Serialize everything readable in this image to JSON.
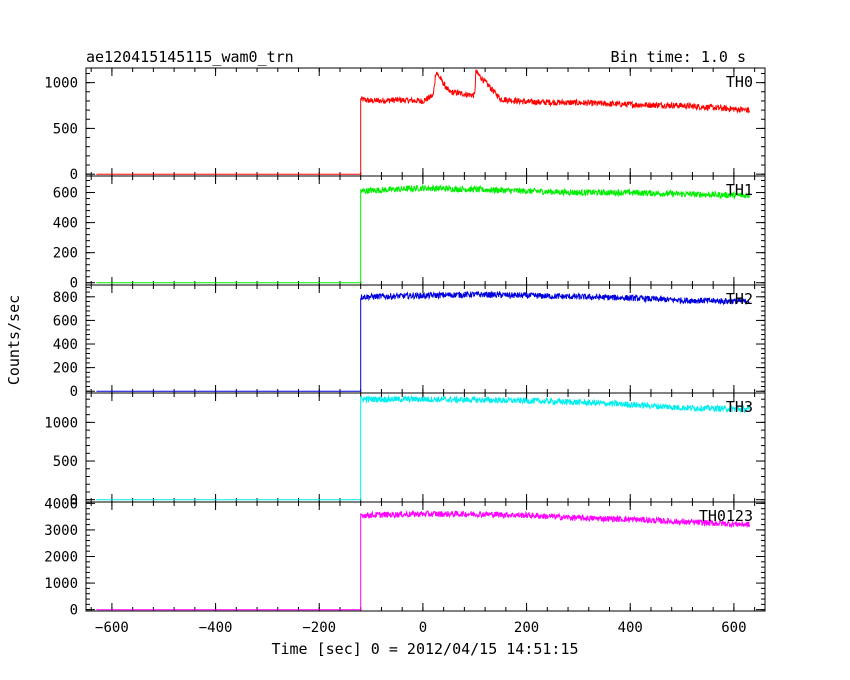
{
  "chart_data": {
    "type": "line",
    "title": "ae120415145115_wam0_trn",
    "subtitle": "Bin time: 1.0 s",
    "xlabel": "Time [sec] 0 = 2012/04/15 14:51:15",
    "ylabel": "Counts/sec",
    "xlim": [
      -650,
      660
    ],
    "xticks": [
      -600,
      -400,
      -200,
      0,
      200,
      400,
      600
    ],
    "onset_time": -120,
    "panels": [
      {
        "name": "TH0",
        "color": "#ff0000",
        "ylim": [
          -20,
          1160
        ],
        "yticks": [
          0,
          500,
          1000
        ],
        "baseline": 0,
        "points": [
          [
            -120,
            820
          ],
          [
            -100,
            800
          ],
          [
            -50,
            810
          ],
          [
            0,
            800
          ],
          [
            20,
            860
          ],
          [
            25,
            1120
          ],
          [
            50,
            900
          ],
          [
            100,
            860
          ],
          [
            102,
            1120
          ],
          [
            150,
            820
          ],
          [
            200,
            790
          ],
          [
            300,
            780
          ],
          [
            400,
            760
          ],
          [
            500,
            750
          ],
          [
            630,
            700
          ]
        ]
      },
      {
        "name": "TH1",
        "color": "#00ee00",
        "ylim": [
          -15,
          710
        ],
        "yticks": [
          0,
          200,
          400,
          600
        ],
        "baseline": 0,
        "points": [
          [
            -120,
            610
          ],
          [
            0,
            630
          ],
          [
            100,
            620
          ],
          [
            200,
            610
          ],
          [
            300,
            600
          ],
          [
            400,
            600
          ],
          [
            500,
            590
          ],
          [
            630,
            580
          ]
        ]
      },
      {
        "name": "TH2",
        "color": "#0000dd",
        "ylim": [
          -15,
          900
        ],
        "yticks": [
          0,
          200,
          400,
          600,
          800
        ],
        "baseline": 0,
        "points": [
          [
            -120,
            800
          ],
          [
            0,
            810
          ],
          [
            100,
            820
          ],
          [
            200,
            810
          ],
          [
            300,
            800
          ],
          [
            400,
            790
          ],
          [
            500,
            770
          ],
          [
            630,
            760
          ]
        ]
      },
      {
        "name": "TH3",
        "color": "#00eeee",
        "ylim": [
          -30,
          1380
        ],
        "yticks": [
          0,
          500,
          1000
        ],
        "baseline": 0,
        "points": [
          [
            -120,
            1300
          ],
          [
            0,
            1300
          ],
          [
            100,
            1290
          ],
          [
            200,
            1280
          ],
          [
            300,
            1260
          ],
          [
            400,
            1230
          ],
          [
            500,
            1190
          ],
          [
            630,
            1170
          ]
        ]
      },
      {
        "name": "TH0123",
        "color": "#ff00ff",
        "ylim": [
          -50,
          4050
        ],
        "yticks": [
          0,
          1000,
          2000,
          3000,
          4000
        ],
        "baseline": 0,
        "points": [
          [
            -120,
            3550
          ],
          [
            0,
            3600
          ],
          [
            100,
            3600
          ],
          [
            200,
            3550
          ],
          [
            300,
            3450
          ],
          [
            400,
            3400
          ],
          [
            500,
            3300
          ],
          [
            630,
            3200
          ]
        ]
      }
    ],
    "grid": false,
    "legend": "none"
  }
}
